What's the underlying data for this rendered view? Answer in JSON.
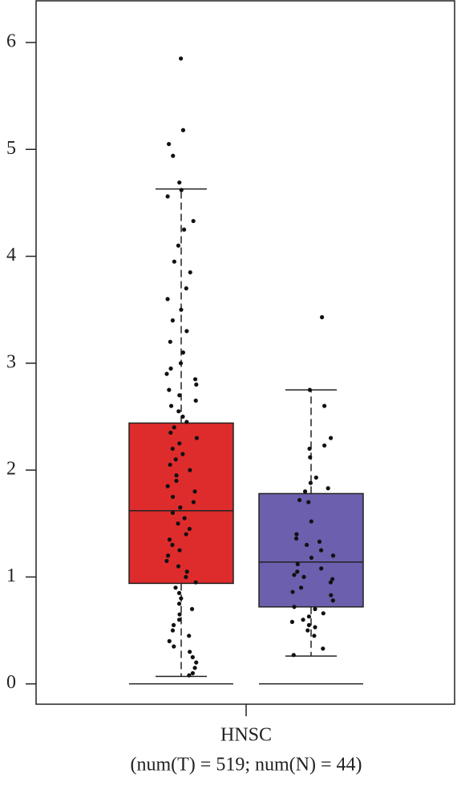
{
  "chart_data": {
    "type": "box",
    "category": "HNSC",
    "subtitle": "(num(T) = 519; num(N) = 44)",
    "ylim": [
      -0.19,
      6.39
    ],
    "yticks": [
      0,
      1,
      2,
      3,
      4,
      5,
      6
    ],
    "reference_line": 0,
    "series": [
      {
        "color": "#de2c2c",
        "whisker_low": 0.07,
        "q1": 0.94,
        "median": 1.62,
        "q3": 2.44,
        "whisker_high": 4.63,
        "points": [
          5.85,
          5.18,
          5.05,
          4.94,
          4.69,
          4.62,
          4.56,
          4.33,
          4.25,
          4.1,
          3.95,
          3.85,
          3.7,
          3.6,
          3.5,
          3.4,
          3.3,
          3.2,
          3.1,
          3.0,
          2.95,
          2.9,
          2.85,
          2.8,
          2.75,
          2.7,
          2.65,
          2.6,
          2.55,
          2.5,
          2.45,
          2.4,
          2.35,
          2.3,
          2.25,
          2.2,
          2.15,
          2.1,
          2.05,
          2.0,
          1.95,
          1.9,
          1.85,
          1.8,
          1.75,
          1.7,
          1.65,
          1.6,
          1.55,
          1.5,
          1.45,
          1.4,
          1.35,
          1.3,
          1.25,
          1.2,
          1.15,
          1.1,
          1.05,
          1.0,
          0.95,
          0.9,
          0.85,
          0.8,
          0.75,
          0.7,
          0.65,
          0.6,
          0.55,
          0.5,
          0.45,
          0.4,
          0.35,
          0.3,
          0.25,
          0.2,
          0.15,
          0.1,
          0.08
        ]
      },
      {
        "color": "#6b5fae",
        "whisker_low": 0.26,
        "q1": 0.72,
        "median": 1.14,
        "q3": 1.78,
        "whisker_high": 2.75,
        "points": [
          3.43,
          2.75,
          2.6,
          2.3,
          2.23,
          2.2,
          2.12,
          1.93,
          1.88,
          1.83,
          1.8,
          1.72,
          1.7,
          1.52,
          1.36,
          1.33,
          1.3,
          1.25,
          1.2,
          1.18,
          1.12,
          1.08,
          1.05,
          1.02,
          1.0,
          0.98,
          0.95,
          0.9,
          0.86,
          0.83,
          0.78,
          0.72,
          0.7,
          0.66,
          0.63,
          0.6,
          0.58,
          0.55,
          0.53,
          0.5,
          0.45,
          0.33,
          0.27,
          1.4
        ]
      }
    ]
  }
}
